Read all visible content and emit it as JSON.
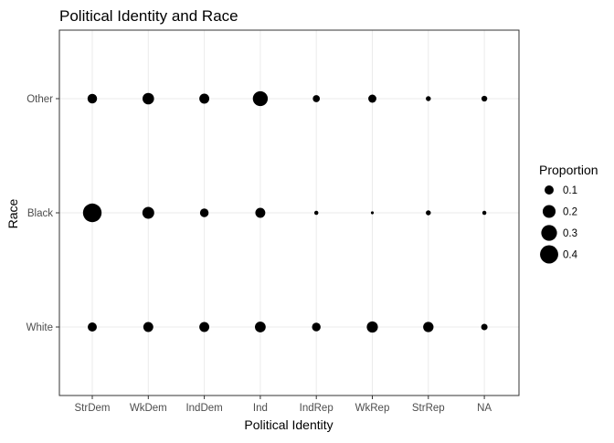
{
  "chart_data": {
    "type": "scatter",
    "title": "Political Identity and Race",
    "xlabel": "Political Identity",
    "ylabel": "Race",
    "x_categories": [
      "StrDem",
      "WkDem",
      "IndDem",
      "Ind",
      "IndRep",
      "WkRep",
      "StrRep",
      "NA"
    ],
    "y_categories": [
      "White",
      "Black",
      "Other"
    ],
    "size_variable": "Proportion",
    "points": [
      {
        "x": "StrDem",
        "y": "White",
        "proportion": 0.1
      },
      {
        "x": "WkDem",
        "y": "White",
        "proportion": 0.12
      },
      {
        "x": "IndDem",
        "y": "White",
        "proportion": 0.12
      },
      {
        "x": "Ind",
        "y": "White",
        "proportion": 0.14
      },
      {
        "x": "IndRep",
        "y": "White",
        "proportion": 0.09
      },
      {
        "x": "WkRep",
        "y": "White",
        "proportion": 0.15
      },
      {
        "x": "StrRep",
        "y": "White",
        "proportion": 0.13
      },
      {
        "x": "NA",
        "y": "White",
        "proportion": 0.05
      },
      {
        "x": "StrDem",
        "y": "Black",
        "proportion": 0.42
      },
      {
        "x": "WkDem",
        "y": "Black",
        "proportion": 0.17
      },
      {
        "x": "IndDem",
        "y": "Black",
        "proportion": 0.09
      },
      {
        "x": "Ind",
        "y": "Black",
        "proportion": 0.12
      },
      {
        "x": "IndRep",
        "y": "Black",
        "proportion": 0.02
      },
      {
        "x": "WkRep",
        "y": "Black",
        "proportion": 0.01
      },
      {
        "x": "StrRep",
        "y": "Black",
        "proportion": 0.03
      },
      {
        "x": "NA",
        "y": "Black",
        "proportion": 0.02
      },
      {
        "x": "StrDem",
        "y": "Other",
        "proportion": 0.11
      },
      {
        "x": "WkDem",
        "y": "Other",
        "proportion": 0.16
      },
      {
        "x": "IndDem",
        "y": "Other",
        "proportion": 0.12
      },
      {
        "x": "Ind",
        "y": "Other",
        "proportion": 0.27
      },
      {
        "x": "IndRep",
        "y": "Other",
        "proportion": 0.06
      },
      {
        "x": "WkRep",
        "y": "Other",
        "proportion": 0.08
      },
      {
        "x": "StrRep",
        "y": "Other",
        "proportion": 0.03
      },
      {
        "x": "NA",
        "y": "Other",
        "proportion": 0.04
      }
    ],
    "legend": {
      "title": "Proportion",
      "values": [
        0.1,
        0.2,
        0.3,
        0.4
      ],
      "labels": [
        "0.1",
        "0.2",
        "0.3",
        "0.4"
      ],
      "placement": "right"
    },
    "grid": true,
    "point_color": "#000000",
    "panel_border_color": "#333333",
    "grid_color": "#ebebeb",
    "background": "#ffffff"
  }
}
